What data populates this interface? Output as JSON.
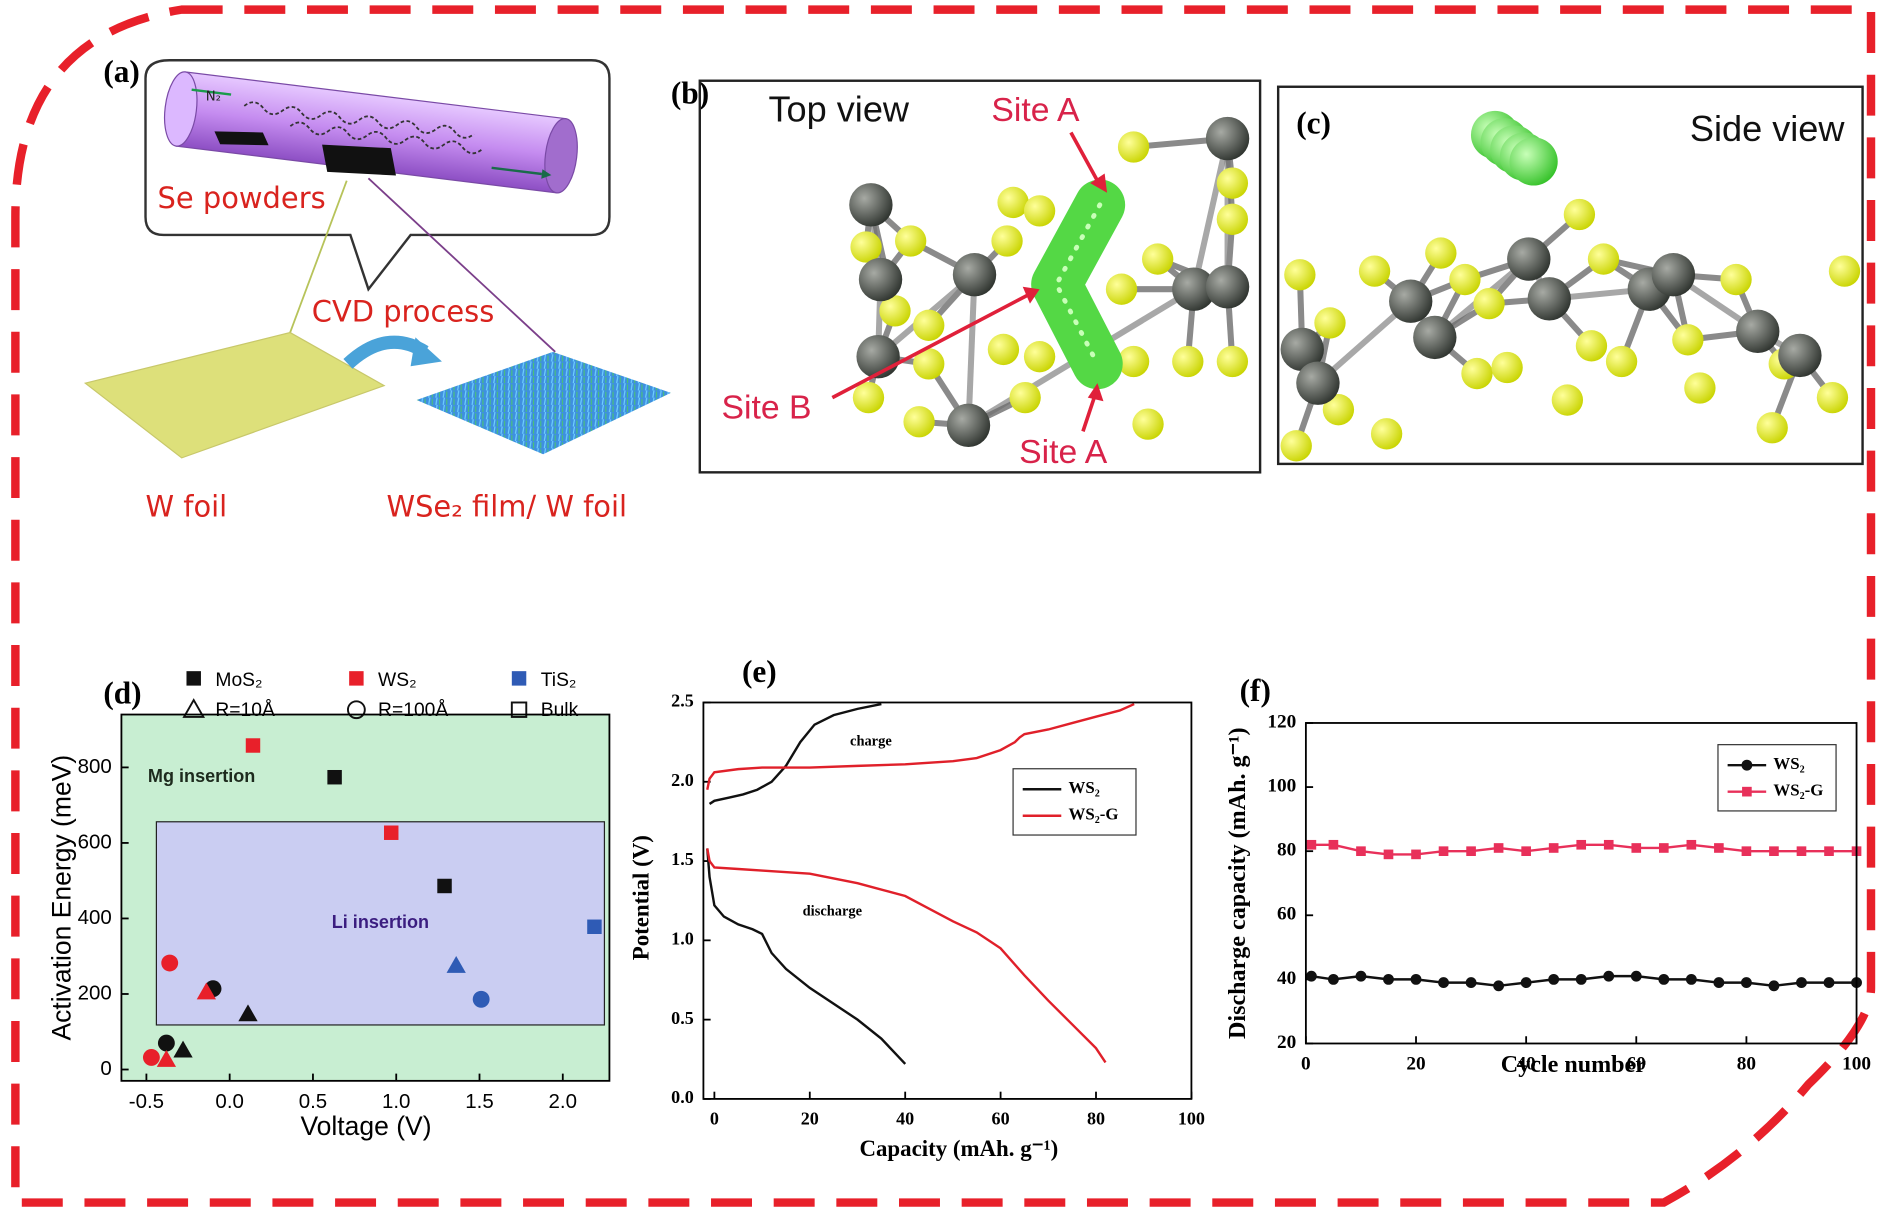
{
  "panels": {
    "a": {
      "label": "(a)",
      "gas": "N₂",
      "powders": "Se powders",
      "process": "CVD process",
      "foil": "W foil",
      "film": "WSe₂ film/ W foil"
    },
    "b": {
      "label": "(b)",
      "title": "Top view",
      "site_a_top": "Site A",
      "site_b": "Site B",
      "site_a_bottom": "Site A"
    },
    "c": {
      "label": "(c)",
      "title": "Side view"
    }
  },
  "chart_data": [
    {
      "type": "scatter",
      "panel_label": "(d)",
      "xlabel": "Voltage (V)",
      "ylabel": "Activation Energy (meV)",
      "xlim": [
        -0.65,
        2.28
      ],
      "ylim": [
        -30,
        940
      ],
      "xticks": [
        -0.5,
        {
          "value": 0,
          "label": "0.0"
        },
        0.5,
        {
          "value": 1,
          "label": "1.0"
        },
        1.5,
        {
          "value": 2,
          "label": "2.0"
        }
      ],
      "yticks": [
        0,
        200,
        400,
        600,
        800
      ],
      "regions": [
        {
          "label": "Mg insertion",
          "color": "#c8eed2",
          "label_color": "#1d2a1d",
          "xlim": [
            -0.65,
            2.28
          ],
          "ylim": [
            -30,
            940
          ]
        },
        {
          "label": "Li insertion",
          "color": "#cacdf2",
          "label_color": "#3b1d80",
          "xlim": [
            -0.44,
            2.25
          ],
          "ylim": [
            118,
            656
          ]
        }
      ],
      "legend_colors": [
        {
          "name": "MoS₂",
          "color": "#111111"
        },
        {
          "name": "WS₂",
          "color": "#e8202a"
        },
        {
          "name": "TiS₂",
          "color": "#2f5bb5"
        }
      ],
      "legend_shapes": [
        {
          "name": "R=10Å",
          "shape": "triangle"
        },
        {
          "name": "R=100Å",
          "shape": "circle"
        },
        {
          "name": "Bulk",
          "shape": "square"
        }
      ],
      "series": [
        {
          "color": "#111111",
          "shape": "square",
          "x": [
            0.63,
            1.29
          ],
          "values": [
            774,
            486
          ]
        },
        {
          "color": "#e8202a",
          "shape": "square",
          "x": [
            0.14,
            0.97
          ],
          "values": [
            858,
            627
          ]
        },
        {
          "color": "#2f5bb5",
          "shape": "square",
          "x": [
            2.19
          ],
          "values": [
            378
          ]
        },
        {
          "color": "#111111",
          "shape": "circle",
          "x": [
            -0.38,
            -0.1
          ],
          "values": [
            70,
            214
          ]
        },
        {
          "color": "#e8202a",
          "shape": "circle",
          "x": [
            -0.36,
            -0.47
          ],
          "values": [
            282,
            32
          ]
        },
        {
          "color": "#2f5bb5",
          "shape": "circle",
          "x": [
            1.51
          ],
          "values": [
            186
          ]
        },
        {
          "color": "#111111",
          "shape": "triangle",
          "x": [
            -0.28,
            0.11
          ],
          "values": [
            51,
            147
          ]
        },
        {
          "color": "#e8202a",
          "shape": "triangle",
          "x": [
            -0.14,
            -0.38
          ],
          "values": [
            205,
            26
          ]
        },
        {
          "color": "#2f5bb5",
          "shape": "triangle",
          "x": [
            1.36
          ],
          "values": [
            275
          ]
        }
      ]
    },
    {
      "type": "line",
      "panel_label": "(e)",
      "xlabel": "Capacity (mAh. g⁻¹)",
      "ylabel": "Potential (V)",
      "xlim": [
        -2.3,
        100
      ],
      "ylim": [
        0,
        2.5
      ],
      "xticks": [
        0,
        20,
        40,
        60,
        80,
        100
      ],
      "yticks": [
        {
          "value": 0,
          "label": "0.0"
        },
        0.5,
        {
          "value": 1,
          "label": "1.0"
        },
        1.5,
        {
          "value": 2,
          "label": "2.0"
        },
        2.5
      ],
      "annotations": [
        "charge",
        "discharge"
      ],
      "series": [
        {
          "name": "WS₂",
          "color": "#111111",
          "x": [
            -1.5,
            -1,
            0,
            2,
            5,
            8,
            10,
            12,
            15,
            20,
            25,
            30,
            35,
            40,
            null,
            -1,
            0,
            3,
            6,
            9,
            12,
            15,
            18,
            21,
            25,
            30,
            35
          ],
          "values": [
            1.58,
            1.4,
            1.22,
            1.15,
            1.1,
            1.07,
            1.04,
            0.92,
            0.82,
            0.7,
            0.6,
            0.5,
            0.38,
            0.22,
            null,
            1.86,
            1.88,
            1.9,
            1.92,
            1.95,
            2.0,
            2.1,
            2.25,
            2.36,
            2.42,
            2.46,
            2.49
          ]
        },
        {
          "name": "WS₂-G",
          "color": "#e0202a",
          "x": [
            -1.5,
            -1,
            0,
            5,
            10,
            20,
            30,
            40,
            45,
            50,
            55,
            60,
            65,
            70,
            75,
            80,
            82,
            null,
            -1.5,
            -1,
            0,
            5,
            10,
            20,
            30,
            40,
            50,
            55,
            60,
            63,
            64,
            65,
            70,
            75,
            80,
            85,
            88
          ],
          "values": [
            1.58,
            1.5,
            1.46,
            1.45,
            1.44,
            1.42,
            1.36,
            1.28,
            1.2,
            1.12,
            1.05,
            0.95,
            0.78,
            0.62,
            0.47,
            0.32,
            0.23,
            null,
            1.95,
            2.02,
            2.06,
            2.08,
            2.09,
            2.09,
            2.1,
            2.11,
            2.13,
            2.15,
            2.2,
            2.25,
            2.28,
            2.3,
            2.33,
            2.37,
            2.41,
            2.45,
            2.49
          ]
        }
      ]
    },
    {
      "type": "line",
      "panel_label": "(f)",
      "xlabel": "Cycle number",
      "ylabel": "Discharge capacity (mAh. g⁻¹)",
      "xlim": [
        0,
        100
      ],
      "ylim": [
        20,
        120
      ],
      "xticks": [
        0,
        20,
        40,
        60,
        80,
        100
      ],
      "yticks": [
        20,
        40,
        60,
        80,
        100,
        120
      ],
      "series": [
        {
          "name": "WS₂",
          "color": "#111111",
          "marker": "circle",
          "x": [
            1,
            5,
            10,
            15,
            20,
            25,
            30,
            35,
            40,
            45,
            50,
            55,
            60,
            65,
            70,
            75,
            80,
            85,
            90,
            95,
            100
          ],
          "values": [
            41,
            40,
            41,
            40,
            40,
            39,
            39,
            38,
            39,
            40,
            40,
            41,
            41,
            40,
            40,
            39,
            39,
            38,
            39,
            39,
            39
          ]
        },
        {
          "name": "WS₂-G",
          "color": "#e8305a",
          "marker": "square",
          "x": [
            1,
            5,
            10,
            15,
            20,
            25,
            30,
            35,
            40,
            45,
            50,
            55,
            60,
            65,
            70,
            75,
            80,
            85,
            90,
            95,
            100
          ],
          "values": [
            82,
            82,
            80,
            79,
            79,
            80,
            80,
            81,
            80,
            81,
            82,
            82,
            81,
            81,
            82,
            81,
            80,
            80,
            80,
            80,
            80
          ]
        }
      ]
    }
  ]
}
